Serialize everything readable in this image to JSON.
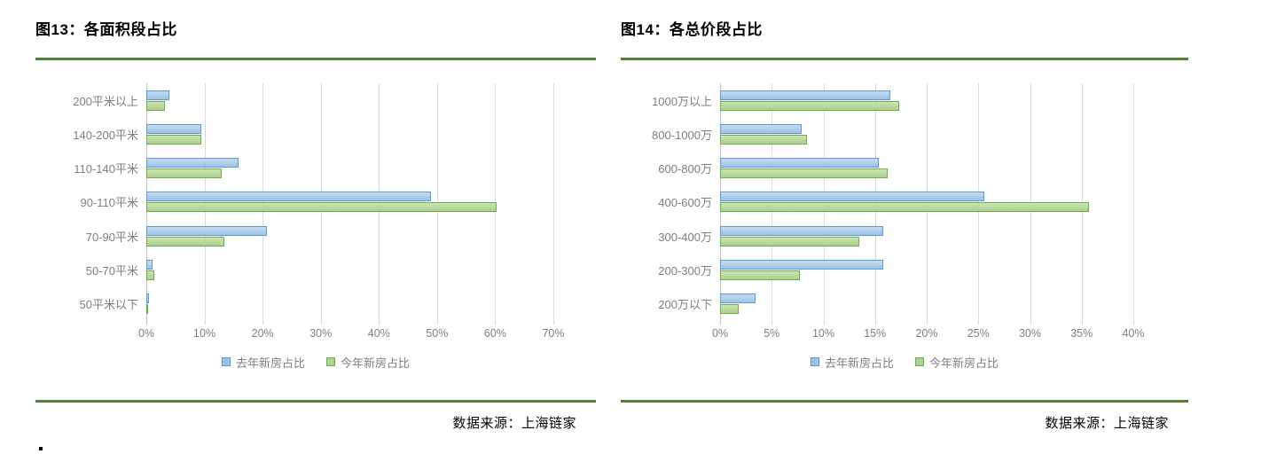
{
  "colors": {
    "accent_rule_green": "#538135",
    "gridline": "#D9D9D9",
    "axis_line": "#C3C3C3",
    "label_gray": "#7F7F7F",
    "series_blue_fill": "#9DC3E6",
    "series_blue_fill_light": "#C6DBF2",
    "series_blue_border": "#5B9BD5",
    "series_green_fill": "#A9D18E",
    "series_green_fill_light": "#CCE3B6",
    "series_green_border": "#70AD47"
  },
  "figures": [
    {
      "title": "图13：各面积段占比",
      "source": "数据来源：上海链家",
      "chart_data": {
        "type": "bar",
        "orientation": "horizontal",
        "title": "图13：各面积段占比",
        "legend_position": "bottom-center",
        "grid": "vertical-only",
        "categories": [
          "200平米以上",
          "140-200平米",
          "110-140平米",
          "90-110平米",
          "70-90平米",
          "50-70平米",
          "50平米以下"
        ],
        "series": [
          {
            "name": "去年新房占比",
            "fill": "#9DC3E6",
            "fill_light": "#C6DBF2",
            "border": "#5B9BD5",
            "values": [
              4.0,
              9.4,
              15.8,
              49.0,
              20.8,
              1.1,
              0.4
            ]
          },
          {
            "name": "今年新房占比",
            "fill": "#A9D18E",
            "fill_light": "#CCE3B6",
            "border": "#70AD47",
            "values": [
              3.2,
              9.5,
              12.9,
              60.3,
              13.4,
              1.4,
              0.3
            ]
          }
        ],
        "x_ticks": [
          "0%",
          "10%",
          "20%",
          "30%",
          "40%",
          "50%",
          "60%",
          "70%"
        ],
        "xlim": [
          0,
          70
        ]
      }
    },
    {
      "title": "图14：各总价段占比",
      "source": "数据来源：上海链家",
      "chart_data": {
        "type": "bar",
        "orientation": "horizontal",
        "title": "图14：各总价段占比",
        "legend_position": "bottom-center",
        "grid": "vertical-only",
        "categories": [
          "1000万以上",
          "800-1000万",
          "600-800万",
          "400-600万",
          "300-400万",
          "200-300万",
          "200万以下"
        ],
        "series": [
          {
            "name": "去年新房占比",
            "fill": "#9DC3E6",
            "fill_light": "#C6DBF2",
            "border": "#5B9BD5",
            "values": [
              16.5,
              7.9,
              15.4,
              25.6,
              15.8,
              15.8,
              3.4
            ]
          },
          {
            "name": "今年新房占比",
            "fill": "#A9D18E",
            "fill_light": "#CCE3B6",
            "border": "#70AD47",
            "values": [
              17.3,
              8.4,
              16.2,
              35.7,
              13.5,
              7.7,
              1.8
            ]
          }
        ],
        "x_ticks": [
          "0%",
          "5%",
          "10%",
          "15%",
          "20%",
          "25%",
          "30%",
          "35%",
          "40%"
        ],
        "xlim": [
          0,
          40
        ]
      }
    }
  ]
}
